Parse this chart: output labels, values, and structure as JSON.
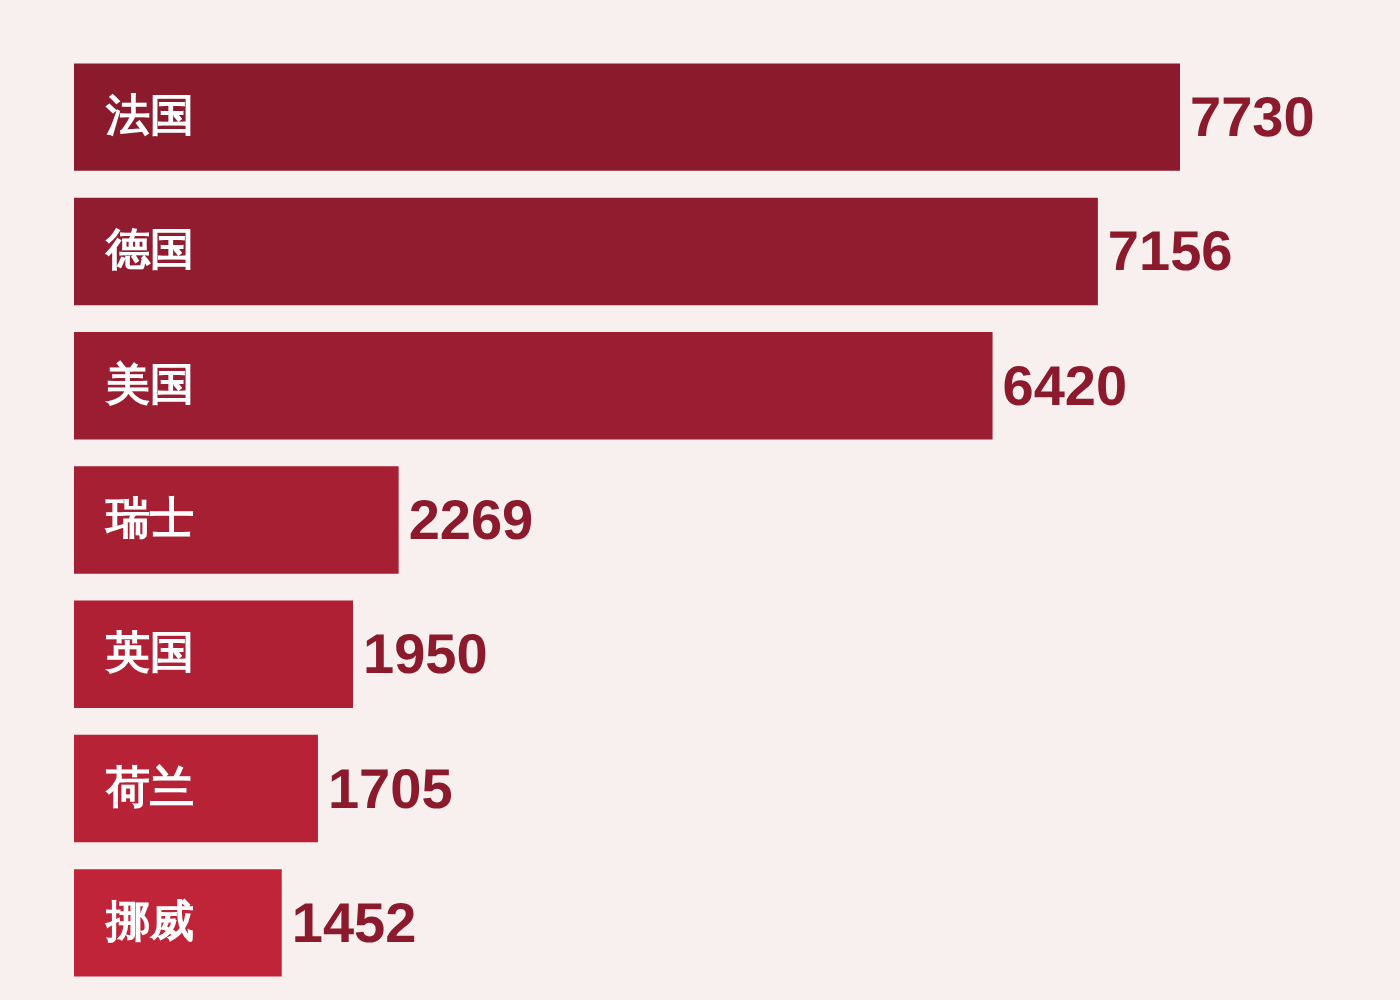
{
  "chart_data": {
    "type": "bar",
    "orientation": "horizontal",
    "categories": [
      "法国",
      "德国",
      "美国",
      "瑞士",
      "英国",
      "荷兰",
      "挪威"
    ],
    "values": [
      7730,
      7156,
      6420,
      2269,
      1950,
      1705,
      1452
    ],
    "colors": [
      "#8b1a2c",
      "#921c2f",
      "#9b1d31",
      "#a71f33",
      "#b02035",
      "#b72236",
      "#c02438"
    ],
    "data_labels": true
  }
}
